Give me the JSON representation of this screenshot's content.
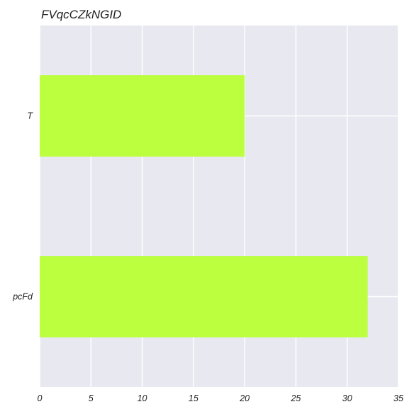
{
  "chart_data": {
    "type": "bar",
    "orientation": "horizontal",
    "title": "FVqcCZkNGID",
    "xlabel": "",
    "ylabel": "",
    "categories": [
      "T",
      "pcFd"
    ],
    "values": [
      20,
      32
    ],
    "xlim": [
      0,
      35
    ],
    "xticks": [
      0,
      5,
      10,
      15,
      20,
      25,
      30,
      35
    ],
    "grid": true,
    "legend": "none",
    "colors": {
      "bar": "#bbff3e",
      "plot_background": "#e8e8f1",
      "grid": "#ffffff"
    }
  }
}
